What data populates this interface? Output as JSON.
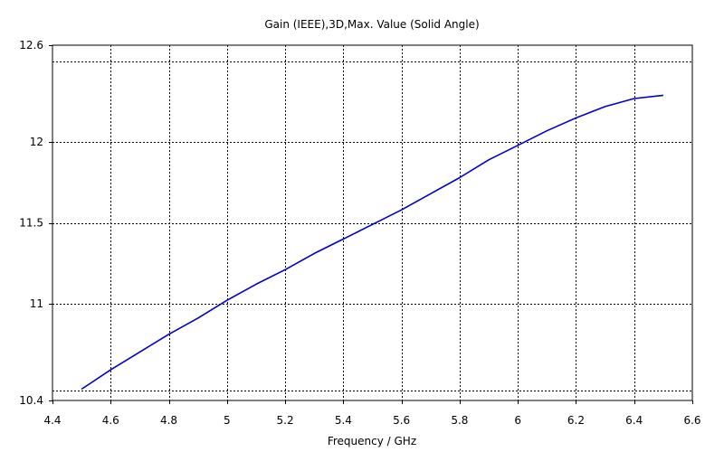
{
  "chart_data": {
    "type": "line",
    "title": "Gain (IEEE),3D,Max. Value (Solid Angle)",
    "xlabel": "Frequency / GHz",
    "ylabel": "",
    "xlim": [
      4.4,
      6.6
    ],
    "ylim": [
      10.4,
      12.6
    ],
    "x_ticks": [
      4.4,
      4.6,
      4.8,
      5.0,
      5.2,
      5.4,
      5.6,
      5.8,
      6.0,
      6.2,
      6.4,
      6.6
    ],
    "x_tick_labels": [
      "4.4",
      "4.6",
      "4.8",
      "5",
      "5.2",
      "5.4",
      "5.6",
      "5.8",
      "6",
      "6.2",
      "6.4",
      "6.6"
    ],
    "y_ticks": [
      10.4,
      11.0,
      11.5,
      12.0,
      12.6
    ],
    "y_tick_labels": [
      "10.4",
      "11",
      "11.5",
      "12",
      "12.6"
    ],
    "extra_gridlines_y": [
      10.46,
      12.5
    ],
    "grid": true,
    "series": [
      {
        "color": "#0000cc",
        "x": [
          4.5,
          4.6,
          4.7,
          4.8,
          4.9,
          5.0,
          5.1,
          5.2,
          5.3,
          5.4,
          5.5,
          5.6,
          5.7,
          5.8,
          5.9,
          6.0,
          6.1,
          6.2,
          6.3,
          6.4,
          6.5
        ],
        "y": [
          10.47,
          10.59,
          10.7,
          10.81,
          10.91,
          11.02,
          11.12,
          11.21,
          11.31,
          11.4,
          11.49,
          11.58,
          11.68,
          11.78,
          11.89,
          11.98,
          12.07,
          12.15,
          12.22,
          12.27,
          12.29
        ]
      }
    ]
  }
}
